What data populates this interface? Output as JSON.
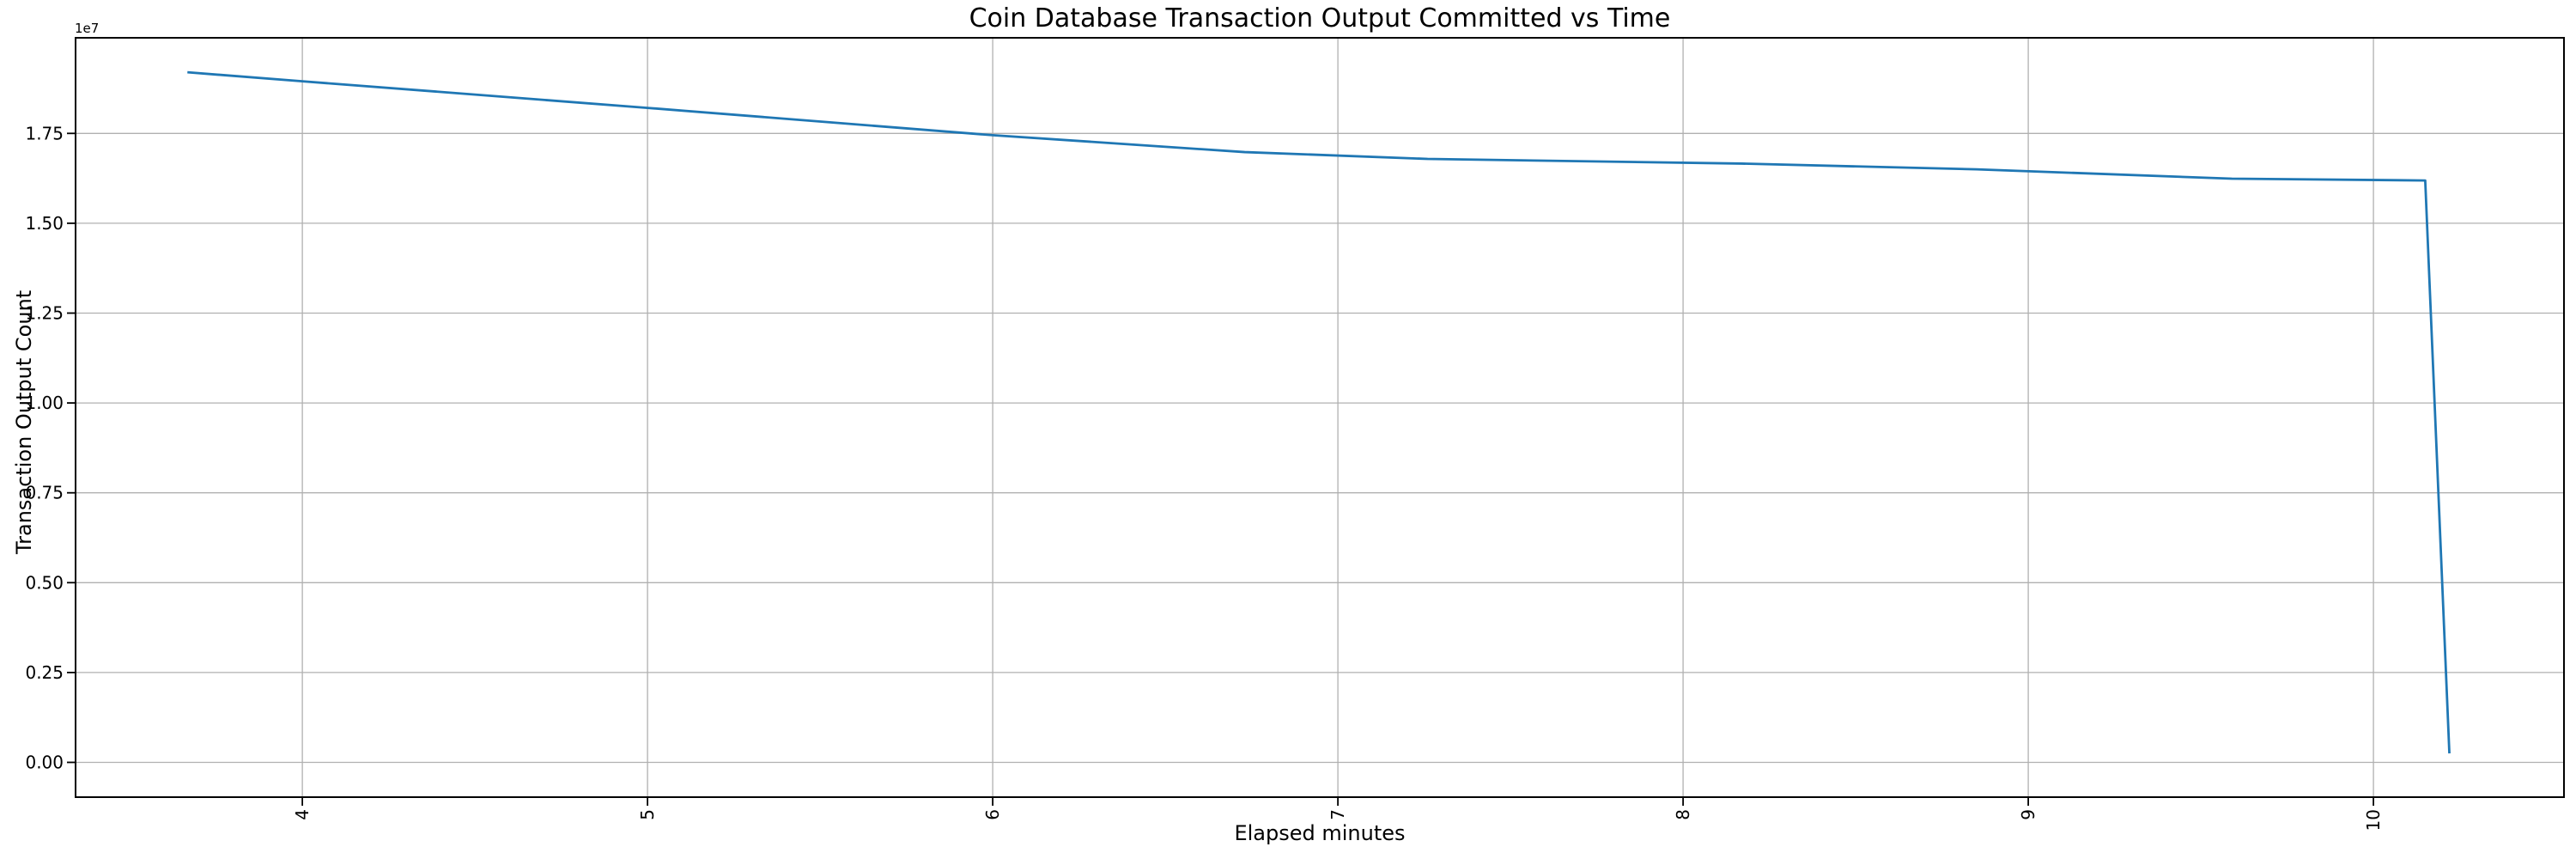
{
  "chart_data": {
    "type": "line",
    "title": "Coin Database Transaction Output Committed vs Time",
    "xlabel": "Elapsed minutes",
    "ylabel": "Transaction Output Count",
    "y_offset_label": "1e7",
    "x": [
      3.667,
      4.0,
      5.0,
      6.0,
      6.73,
      7.26,
      8.17,
      8.85,
      9.59,
      10.15,
      10.22
    ],
    "y": [
      19200000,
      18950000,
      18210000,
      17450000,
      16980000,
      16790000,
      16660000,
      16500000,
      16240000,
      16190000,
      250000
    ],
    "x_tick_values": [
      4,
      5,
      6,
      7,
      8,
      9,
      10
    ],
    "x_tick_labels": [
      "4",
      "5",
      "6",
      "7",
      "8",
      "9",
      "10"
    ],
    "y_tick_values": [
      0,
      2500000,
      5000000,
      7500000,
      10000000,
      12500000,
      15000000,
      17500000
    ],
    "y_tick_labels": [
      "0.00",
      "0.25",
      "0.50",
      "0.75",
      "1.00",
      "1.25",
      "1.50",
      "1.75"
    ],
    "xlim": [
      3.343,
      10.552
    ],
    "ylim": [
      -968000,
      20160000
    ],
    "grid": true,
    "x_tick_rotation": 90,
    "legend": "none",
    "colors": {
      "line": "#1f77b4",
      "grid": "#b0b0b0",
      "spine": "#000000",
      "text": "#000000",
      "background": "#ffffff"
    }
  }
}
